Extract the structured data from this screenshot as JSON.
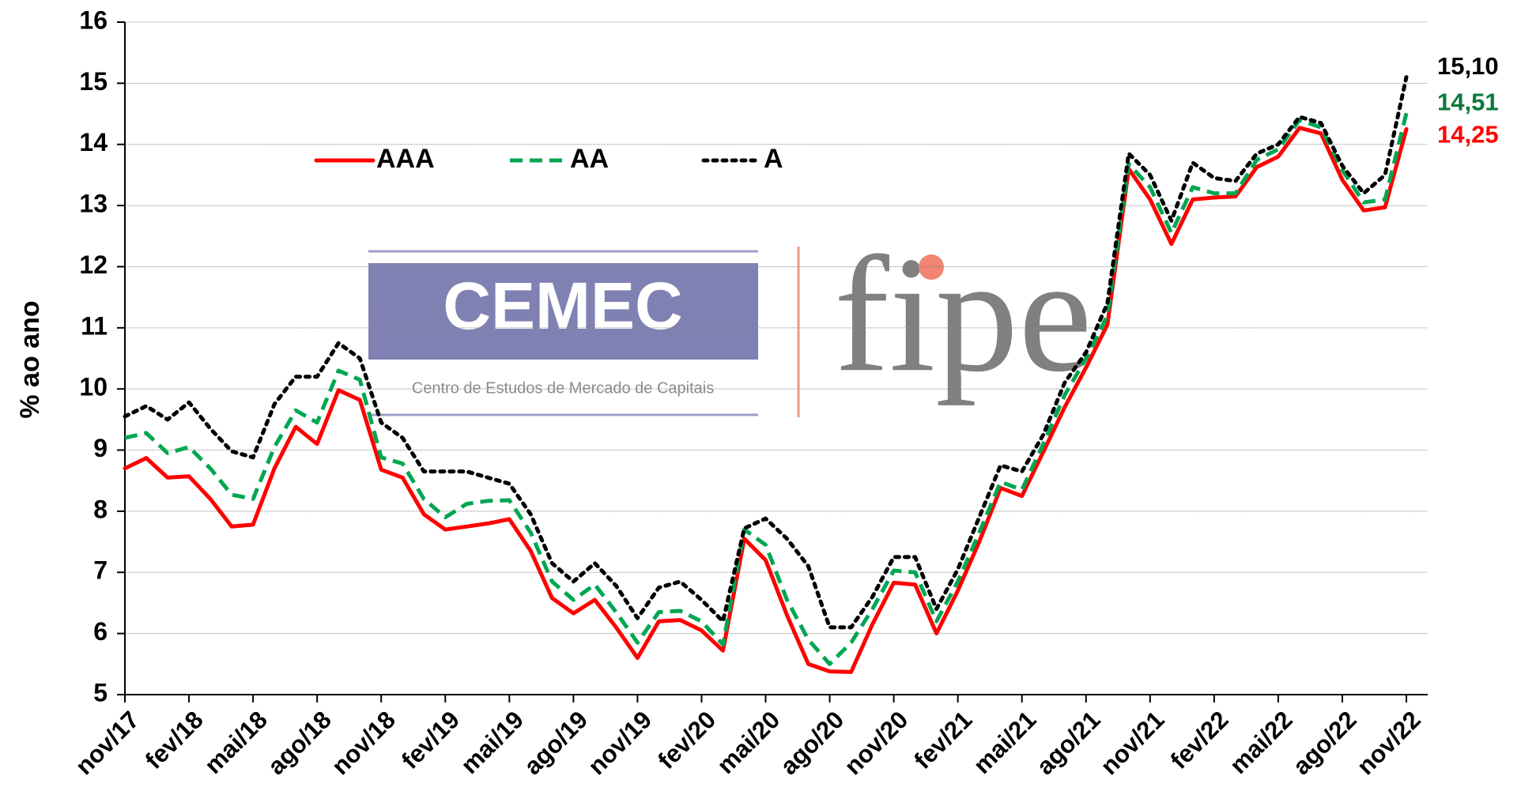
{
  "chart_data": {
    "type": "line",
    "y_label": "% ao ano",
    "watermark": {
      "name": "CEMEC",
      "subtitle": "Centro de Estudos de Mercado de Capitais",
      "partner": "fipe"
    },
    "categories": [
      "nov/17",
      null,
      null,
      "fev/18",
      null,
      null,
      "mai/18",
      null,
      null,
      "ago/18",
      null,
      null,
      "nov/18",
      null,
      null,
      "fev/19",
      null,
      null,
      "mai/19",
      null,
      null,
      "ago/19",
      null,
      null,
      "nov/19",
      null,
      null,
      "fev/20",
      null,
      null,
      "mai/20",
      null,
      null,
      "ago/20",
      null,
      null,
      "nov/20",
      null,
      null,
      "fev/21",
      null,
      null,
      "mai/21",
      null,
      null,
      "ago/21",
      null,
      null,
      "nov/21",
      null,
      null,
      "fev/22",
      null,
      null,
      "mai/22",
      null,
      null,
      "ago/22",
      null,
      null,
      "nov/22"
    ],
    "ylim": [
      5,
      16
    ],
    "yticks": [
      5,
      6,
      7,
      8,
      9,
      10,
      11,
      12,
      13,
      14,
      15,
      16
    ],
    "grid": true,
    "legend": "top-left",
    "series": [
      {
        "name": "AAA",
        "color": "#ff0000",
        "style": "solid",
        "label_color": "#ff0000",
        "values": [
          8.7,
          8.87,
          8.55,
          8.57,
          8.2,
          7.75,
          7.78,
          8.7,
          9.38,
          9.1,
          9.98,
          9.82,
          8.68,
          8.55,
          7.95,
          7.7,
          7.75,
          7.8,
          7.87,
          7.35,
          6.58,
          6.33,
          6.55,
          6.1,
          5.6,
          6.2,
          6.22,
          6.05,
          5.72,
          7.55,
          7.2,
          6.3,
          5.5,
          5.38,
          5.37,
          6.15,
          6.83,
          6.8,
          6.0,
          6.7,
          7.5,
          8.38,
          8.25,
          8.97,
          9.7,
          10.35,
          11.05,
          13.6,
          13.1,
          12.37,
          13.1,
          13.13,
          13.15,
          13.63,
          13.8,
          14.27,
          14.18,
          13.42,
          12.92,
          12.97,
          14.25
        ],
        "value_labels": [
          null,
          null,
          null,
          null,
          null,
          null,
          null,
          null,
          null,
          null,
          null,
          null,
          null,
          null,
          null,
          null,
          null,
          null,
          null,
          null,
          null,
          null,
          null,
          null,
          null,
          null,
          null,
          null,
          null,
          null,
          null,
          null,
          null,
          null,
          null,
          null,
          null,
          null,
          null,
          null,
          null,
          null,
          null,
          null,
          null,
          null,
          null,
          null,
          null,
          null,
          null,
          null,
          null,
          null,
          null,
          null,
          null,
          null,
          null,
          null,
          "14,25"
        ]
      },
      {
        "name": "AA",
        "color": "#00a651",
        "style": "dashed",
        "label_color": "#0b7a3a",
        "values": [
          9.2,
          9.28,
          8.95,
          9.05,
          8.7,
          8.27,
          8.2,
          9.05,
          9.65,
          9.45,
          10.3,
          10.15,
          8.88,
          8.78,
          8.2,
          7.9,
          8.12,
          8.17,
          8.18,
          7.65,
          6.85,
          6.55,
          6.8,
          6.35,
          5.85,
          6.35,
          6.37,
          6.2,
          5.82,
          7.7,
          7.45,
          6.55,
          5.9,
          5.5,
          5.85,
          6.4,
          7.03,
          7.0,
          6.2,
          6.85,
          7.65,
          8.48,
          8.35,
          9.1,
          9.9,
          10.5,
          11.2,
          13.68,
          13.3,
          12.55,
          13.3,
          13.2,
          13.2,
          13.75,
          13.92,
          14.4,
          14.28,
          13.58,
          13.05,
          13.1,
          14.51
        ],
        "value_labels": [
          null,
          null,
          null,
          null,
          null,
          null,
          null,
          null,
          null,
          null,
          null,
          null,
          null,
          null,
          null,
          null,
          null,
          null,
          null,
          null,
          null,
          null,
          null,
          null,
          null,
          null,
          null,
          null,
          null,
          null,
          null,
          null,
          null,
          null,
          null,
          null,
          null,
          null,
          null,
          null,
          null,
          null,
          null,
          null,
          null,
          null,
          null,
          null,
          null,
          null,
          null,
          null,
          null,
          null,
          null,
          null,
          null,
          null,
          null,
          null,
          "14,51"
        ]
      },
      {
        "name": "A",
        "color": "#000000",
        "style": "dotted",
        "label_color": "#000000",
        "values": [
          9.55,
          9.72,
          9.5,
          9.78,
          9.35,
          8.98,
          8.88,
          9.75,
          10.2,
          10.2,
          10.75,
          10.5,
          9.45,
          9.2,
          8.65,
          8.65,
          8.65,
          8.55,
          8.45,
          7.95,
          7.15,
          6.85,
          7.15,
          6.78,
          6.25,
          6.75,
          6.85,
          6.55,
          6.2,
          7.72,
          7.88,
          7.55,
          7.1,
          6.1,
          6.1,
          6.6,
          7.25,
          7.25,
          6.4,
          7.05,
          7.9,
          8.75,
          8.65,
          9.25,
          10.1,
          10.6,
          11.4,
          13.85,
          13.5,
          12.75,
          13.7,
          13.45,
          13.4,
          13.85,
          14.0,
          14.45,
          14.35,
          13.65,
          13.2,
          13.5,
          15.1
        ],
        "value_labels": [
          null,
          null,
          null,
          null,
          null,
          null,
          null,
          null,
          null,
          null,
          null,
          null,
          null,
          null,
          null,
          null,
          null,
          null,
          null,
          null,
          null,
          null,
          null,
          null,
          null,
          null,
          null,
          null,
          null,
          null,
          null,
          null,
          null,
          null,
          null,
          null,
          null,
          null,
          null,
          null,
          null,
          null,
          null,
          null,
          null,
          null,
          null,
          null,
          null,
          null,
          null,
          null,
          null,
          null,
          null,
          null,
          null,
          null,
          null,
          null,
          "15,10"
        ]
      }
    ]
  }
}
